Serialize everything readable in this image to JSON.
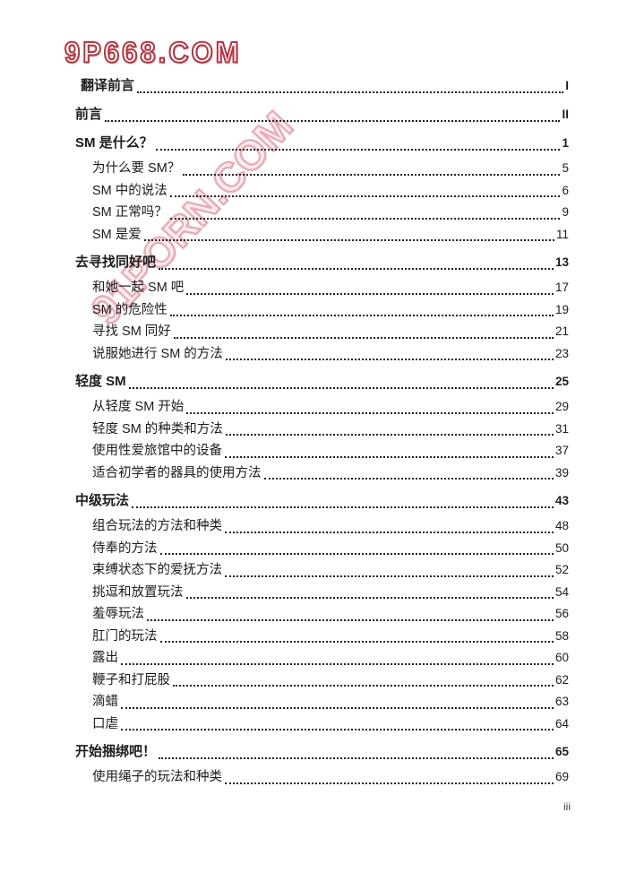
{
  "page": {
    "logo_text": "9P668.COM",
    "watermark_text": "91PORN.COM",
    "footer_page_number": "iii",
    "colors": {
      "logo_red": "#b23743",
      "watermark_pink": "#e295a2",
      "text": "#1c1c1c"
    }
  },
  "toc": {
    "entries": [
      {
        "title": "翻译前言",
        "page": "I",
        "bold": true,
        "level": 0,
        "extra_indent": true
      },
      {
        "title": "前言",
        "page": "II",
        "bold": true,
        "level": 0
      },
      {
        "title": "SM 是什么？",
        "page": "1",
        "bold": true,
        "level": 0
      },
      {
        "title": "为什么要 SM？",
        "page": "5",
        "bold": false,
        "level": 1
      },
      {
        "title": "SM 中的说法",
        "page": "6",
        "bold": false,
        "level": 1
      },
      {
        "title": "SM 正常吗？",
        "page": "9",
        "bold": false,
        "level": 1
      },
      {
        "title": "SM 是爱",
        "page": "11",
        "bold": false,
        "level": 1
      },
      {
        "title": "去寻找同好吧",
        "page": "13",
        "bold": true,
        "level": 0
      },
      {
        "title": "和她一起 SM 吧",
        "page": "17",
        "bold": false,
        "level": 1
      },
      {
        "title": "SM 的危险性",
        "page": "19",
        "bold": false,
        "level": 1
      },
      {
        "title": "寻找 SM 同好",
        "page": "21",
        "bold": false,
        "level": 1
      },
      {
        "title": "说服她进行 SM 的方法",
        "page": "23",
        "bold": false,
        "level": 1
      },
      {
        "title": "轻度 SM",
        "page": "25",
        "bold": true,
        "level": 0
      },
      {
        "title": "从轻度 SM 开始",
        "page": "29",
        "bold": false,
        "level": 1
      },
      {
        "title": "轻度 SM 的种类和方法",
        "page": "31",
        "bold": false,
        "level": 1
      },
      {
        "title": "使用性爱旅馆中的设备",
        "page": "37",
        "bold": false,
        "level": 1
      },
      {
        "title": "适合初学者的器具的使用方法",
        "page": "39",
        "bold": false,
        "level": 1
      },
      {
        "title": "中级玩法",
        "page": "43",
        "bold": true,
        "level": 0
      },
      {
        "title": "组合玩法的方法和种类",
        "page": "48",
        "bold": false,
        "level": 1
      },
      {
        "title": "侍奉的方法",
        "page": "50",
        "bold": false,
        "level": 1
      },
      {
        "title": "束缚状态下的爱抚方法",
        "page": "52",
        "bold": false,
        "level": 1
      },
      {
        "title": "挑逗和放置玩法",
        "page": "54",
        "bold": false,
        "level": 1
      },
      {
        "title": "羞辱玩法",
        "page": "56",
        "bold": false,
        "level": 1
      },
      {
        "title": "肛门的玩法",
        "page": "58",
        "bold": false,
        "level": 1
      },
      {
        "title": "露出",
        "page": "60",
        "bold": false,
        "level": 1
      },
      {
        "title": "鞭子和打屁股",
        "page": "62",
        "bold": false,
        "level": 1
      },
      {
        "title": "滴蜡",
        "page": "63",
        "bold": false,
        "level": 1
      },
      {
        "title": "口虐",
        "page": "64",
        "bold": false,
        "level": 1
      },
      {
        "title": "开始捆绑吧！",
        "page": "65",
        "bold": true,
        "level": 0
      },
      {
        "title": "使用绳子的玩法和种类",
        "page": "69",
        "bold": false,
        "level": 1
      }
    ]
  }
}
